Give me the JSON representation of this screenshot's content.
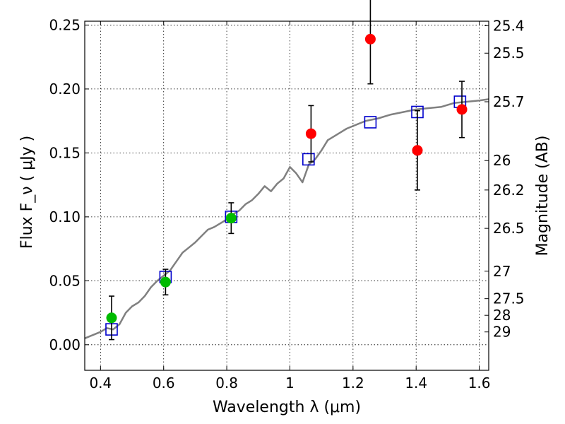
{
  "chart_data": {
    "type": "scatter",
    "xlabel": "Wavelength  λ (μm)",
    "ylabel_left": "Flux  F_ν  ( μJy )",
    "ylabel_right": "Magnitude (AB)",
    "xlim": [
      0.35,
      1.63
    ],
    "ylim": [
      -0.02,
      0.253
    ],
    "grid": true,
    "x_ticks": [
      0.4,
      0.6,
      0.8,
      1.0,
      1.2,
      1.4,
      1.6
    ],
    "x_tick_labels": [
      "0.4",
      "0.6",
      "0.8",
      "1",
      "1.2",
      "1.4",
      "1.6"
    ],
    "y_ticks": [
      0.0,
      0.05,
      0.1,
      0.15,
      0.2,
      0.25
    ],
    "y_tick_labels": [
      "0.00",
      "0.05",
      "0.10",
      "0.15",
      "0.20",
      "0.25"
    ],
    "right_ticks": [
      {
        "flux": 0.2495,
        "label": "25.4"
      },
      {
        "flux": 0.228,
        "label": "25.5"
      },
      {
        "flux": 0.19,
        "label": "25.7"
      },
      {
        "flux": 0.144,
        "label": "26"
      },
      {
        "flux": 0.121,
        "label": "26.2"
      },
      {
        "flux": 0.091,
        "label": "26.5"
      },
      {
        "flux": 0.0575,
        "label": "27"
      },
      {
        "flux": 0.036,
        "label": "27.5"
      },
      {
        "flux": 0.023,
        "label": "28"
      },
      {
        "flux": 0.01,
        "label": "29"
      }
    ],
    "series": [
      {
        "name": "model_spectrum",
        "type": "line",
        "color": "#808080",
        "x": [
          0.35,
          0.38,
          0.4,
          0.42,
          0.44,
          0.46,
          0.48,
          0.5,
          0.52,
          0.54,
          0.56,
          0.58,
          0.6,
          0.62,
          0.64,
          0.66,
          0.68,
          0.7,
          0.72,
          0.74,
          0.76,
          0.78,
          0.8,
          0.82,
          0.84,
          0.86,
          0.88,
          0.9,
          0.92,
          0.94,
          0.96,
          0.98,
          1.0,
          1.02,
          1.04,
          1.06,
          1.08,
          1.1,
          1.12,
          1.14,
          1.16,
          1.18,
          1.2,
          1.24,
          1.28,
          1.32,
          1.36,
          1.4,
          1.44,
          1.48,
          1.52,
          1.56,
          1.6,
          1.63
        ],
        "y": [
          0.005,
          0.008,
          0.01,
          0.013,
          0.012,
          0.016,
          0.025,
          0.03,
          0.033,
          0.038,
          0.045,
          0.05,
          0.054,
          0.058,
          0.065,
          0.072,
          0.076,
          0.08,
          0.085,
          0.09,
          0.092,
          0.095,
          0.098,
          0.102,
          0.105,
          0.11,
          0.113,
          0.118,
          0.124,
          0.12,
          0.126,
          0.13,
          0.139,
          0.134,
          0.127,
          0.141,
          0.145,
          0.152,
          0.16,
          0.163,
          0.166,
          0.169,
          0.171,
          0.175,
          0.177,
          0.18,
          0.182,
          0.184,
          0.185,
          0.186,
          0.189,
          0.19,
          0.191,
          0.192
        ]
      },
      {
        "name": "model_photometry",
        "type": "scatter",
        "marker": "open-square",
        "color": "#0000cc",
        "x": [
          0.435,
          0.606,
          0.814,
          1.059,
          1.255,
          1.404,
          1.539
        ],
        "y": [
          0.012,
          0.053,
          0.1,
          0.145,
          0.174,
          0.182,
          0.19
        ]
      },
      {
        "name": "observed_green",
        "type": "scatter",
        "marker": "filled-circle",
        "color": "#00bb00",
        "x": [
          0.435,
          0.606,
          0.814
        ],
        "y": [
          0.021,
          0.049,
          0.099
        ],
        "yerr": [
          0.017,
          0.01,
          0.012
        ]
      },
      {
        "name": "observed_red",
        "type": "scatter",
        "marker": "filled-circle",
        "color": "#ff0000",
        "x": [
          1.067,
          1.255,
          1.404,
          1.545
        ],
        "y": [
          0.165,
          0.239,
          0.152,
          0.184
        ],
        "yerr": [
          0.022,
          0.035,
          0.031,
          0.022
        ]
      }
    ]
  }
}
